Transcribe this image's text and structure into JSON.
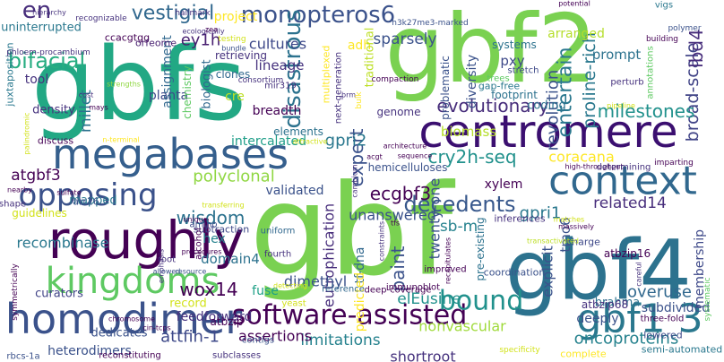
{
  "words": [
    {
      "text": "gbfs",
      "color": "#22a884"
    },
    {
      "text": "gbf2",
      "color": "#7ad151"
    },
    {
      "text": "gbf",
      "color": "#7ad151"
    },
    {
      "text": "gbf4",
      "color": "#2c728e"
    },
    {
      "text": "centromere",
      "color": "#3b0f70"
    },
    {
      "text": "context",
      "color": "#31688e"
    },
    {
      "text": "megabases",
      "color": "#355f8d"
    },
    {
      "text": "roughly",
      "color": "#440154"
    },
    {
      "text": "homodimer",
      "color": "#3b528b"
    },
    {
      "text": "kingdoms",
      "color": "#5ec962"
    },
    {
      "text": "gbf1 3",
      "color": "#2a788e"
    },
    {
      "text": "software-assisted",
      "color": "#440154"
    },
    {
      "text": "opposing",
      "color": "#3b528b"
    },
    {
      "text": "bound",
      "color": "#21918c"
    },
    {
      "text": "monopteros6",
      "color": "#3b528b"
    },
    {
      "text": "decedents",
      "color": "#38588c"
    },
    {
      "text": "disastrous",
      "color": "#2c728e"
    },
    {
      "text": "vestigial",
      "color": "#31688e"
    },
    {
      "text": "wisdom",
      "color": "#2c728e"
    },
    {
      "text": "ecgbf3",
      "color": "#440154"
    },
    {
      "text": "cry2h-seq",
      "color": "#21918c"
    },
    {
      "text": "polyclonal",
      "color": "#90d743"
    },
    {
      "text": "expert",
      "color": "#3b528b"
    },
    {
      "text": "paint",
      "color": "#3b528b"
    },
    {
      "text": "eutrophication",
      "color": "#472d7b"
    },
    {
      "text": "entertain",
      "color": "#2a788e"
    },
    {
      "text": "proline-rich",
      "color": "#2a788e"
    },
    {
      "text": "broad-scale",
      "color": "#414487"
    },
    {
      "text": "lbd4",
      "color": "#472d7b"
    },
    {
      "text": "milestones",
      "color": "#21918c"
    },
    {
      "text": "coracana",
      "color": "#fde725"
    },
    {
      "text": "bifacial",
      "color": "#27ad81"
    },
    {
      "text": "en",
      "color": "#472d7b"
    },
    {
      "text": "ey1h",
      "color": "#481f70"
    },
    {
      "text": "wox14",
      "color": "#440154"
    },
    {
      "text": "attfin-1",
      "color": "#3e4989"
    },
    {
      "text": "sparsely",
      "color": "#3b528b"
    },
    {
      "text": "revolution",
      "color": "#3b528b"
    },
    {
      "text": "evolutionary",
      "color": "#472d7b"
    },
    {
      "text": "gpri2",
      "color": "#2a788e"
    },
    {
      "text": "gpri1",
      "color": "#2a788e"
    },
    {
      "text": "related14",
      "color": "#472d7b"
    },
    {
      "text": "overuse",
      "color": "#31688e"
    },
    {
      "text": "oncoproteins",
      "color": "#26828e"
    },
    {
      "text": "elEusine",
      "color": "#21918c"
    },
    {
      "text": "limitations",
      "color": "#26828e"
    },
    {
      "text": "assertions",
      "color": "#440154"
    },
    {
      "text": "nonvascular",
      "color": "#9fda3a"
    },
    {
      "text": "shortroot",
      "color": "#46327e"
    },
    {
      "text": "twenty-one",
      "color": "#3b528b"
    },
    {
      "text": "sb-m",
      "color": "#26828e"
    },
    {
      "text": "unanswered",
      "color": "#3b528b"
    },
    {
      "text": "atgbf3",
      "color": "#440154"
    },
    {
      "text": "pxy",
      "color": "#3e4989"
    },
    {
      "text": "adh",
      "color": "#fde725"
    },
    {
      "text": "cultures",
      "color": "#3e4989"
    },
    {
      "text": "lineage",
      "color": "#46327e"
    },
    {
      "text": "project",
      "color": "#fde725"
    },
    {
      "text": "millet",
      "color": "#2c728e"
    },
    {
      "text": "arranged",
      "color": "#b5de2b"
    },
    {
      "text": "prompt",
      "color": "#2c728e"
    },
    {
      "text": "recombinase",
      "color": "#2a788e"
    },
    {
      "text": "domain4",
      "color": "#2c728e"
    },
    {
      "text": "hex",
      "color": "#26828e"
    },
    {
      "text": "dimethyl",
      "color": "#3b528b"
    },
    {
      "text": "tf-dna",
      "color": "#31688e"
    },
    {
      "text": "fuse",
      "color": "#1fa187"
    },
    {
      "text": "heterodimers",
      "color": "#3b528b"
    },
    {
      "text": "feedforward",
      "color": "#46327e"
    },
    {
      "text": "explicit",
      "color": "#3b528b"
    },
    {
      "text": "deeply",
      "color": "#3b528b"
    },
    {
      "text": "subdivided",
      "color": "#3b528b"
    },
    {
      "text": "brahma",
      "color": "#2c728e"
    },
    {
      "text": "tmo6",
      "color": "#3b528b"
    },
    {
      "text": "membership",
      "color": "#3e4989"
    },
    {
      "text": "xylem",
      "color": "#440154"
    },
    {
      "text": "biomass",
      "color": "#b5de2b"
    },
    {
      "text": "hemicelluloses",
      "color": "#3b528b"
    },
    {
      "text": "validated",
      "color": "#3b528b"
    },
    {
      "text": "intercalated",
      "color": "#1f9e89"
    },
    {
      "text": "elements",
      "color": "#2c728e"
    },
    {
      "text": "breadth",
      "color": "#440154"
    },
    {
      "text": "coding",
      "color": "#2c728e"
    },
    {
      "text": "mapped",
      "color": "#2a788e"
    },
    {
      "text": "curators",
      "color": "#414487"
    },
    {
      "text": "record",
      "color": "#d2e21b"
    },
    {
      "text": "dedicates",
      "color": "#3b528b"
    },
    {
      "text": "uninterrupted",
      "color": "#2a788e"
    },
    {
      "text": "retrieving",
      "color": "#46327e"
    },
    {
      "text": "clones",
      "color": "#31688e"
    },
    {
      "text": "planta",
      "color": "#3e4989"
    },
    {
      "text": "density",
      "color": "#46327e"
    },
    {
      "text": "tool",
      "color": "#46327e"
    },
    {
      "text": "guidelines",
      "color": "#d2e21b"
    },
    {
      "text": "predicted",
      "color": "#fde725"
    },
    {
      "text": "diversity",
      "color": "#3b528b"
    },
    {
      "text": "genome",
      "color": "#46327e"
    },
    {
      "text": "systems",
      "color": "#2c728e"
    },
    {
      "text": "footprint",
      "color": "#2c728e"
    },
    {
      "text": "assignment",
      "color": "#31688e"
    },
    {
      "text": "atbzip16",
      "color": "#440154"
    },
    {
      "text": "atbzip68",
      "color": "#46327e"
    },
    {
      "text": "atbzip",
      "color": "#440154"
    },
    {
      "text": "biologist",
      "color": "#31688e"
    },
    {
      "text": "cre",
      "color": "#bddf26"
    },
    {
      "text": "chemistry",
      "color": "#5ec962"
    },
    {
      "text": "problematic",
      "color": "#3b528b"
    },
    {
      "text": "traditional",
      "color": "#bddf26"
    },
    {
      "text": "ccacgtgg",
      "color": "#440154"
    },
    {
      "text": "orfeome",
      "color": "#481f70"
    },
    {
      "text": "vigs",
      "color": "#2a788e"
    },
    {
      "text": "juxtaposition",
      "color": "#2a788e"
    },
    {
      "text": "multiplexed",
      "color": "#fde725"
    },
    {
      "text": "next-generation",
      "color": "#46327e"
    },
    {
      "text": "discuss",
      "color": "#440154"
    },
    {
      "text": "arr16",
      "color": "#3b528b"
    },
    {
      "text": "shape",
      "color": "#46327e"
    },
    {
      "text": "amino",
      "color": "#3e4989"
    },
    {
      "text": "subtraction",
      "color": "#3e4989"
    },
    {
      "text": "alcohol",
      "color": "#440154"
    },
    {
      "text": "uniform",
      "color": "#31688e"
    },
    {
      "text": "fourth",
      "color": "#46327e"
    },
    {
      "text": "root",
      "color": "#46327e"
    },
    {
      "text": "pre-existing",
      "color": "#2c728e"
    },
    {
      "text": "coordination",
      "color": "#3b528b"
    },
    {
      "text": "inferences",
      "color": "#46327e"
    },
    {
      "text": "charge",
      "color": "#3e4989"
    },
    {
      "text": "lowered",
      "color": "#3e4989"
    },
    {
      "text": "three-fold",
      "color": "#440154"
    },
    {
      "text": "semi-automated",
      "color": "#2a788e"
    },
    {
      "text": "complete",
      "color": "#fde725"
    },
    {
      "text": "immunoblot",
      "color": "#440154"
    },
    {
      "text": "deep-coverage",
      "color": "#440154"
    },
    {
      "text": "yeast",
      "color": "#d2e21b"
    },
    {
      "text": "improved",
      "color": "#440154"
    },
    {
      "text": "reference",
      "color": "#31688e"
    },
    {
      "text": "contigs",
      "color": "#3b528b"
    },
    {
      "text": "rbcs-1a",
      "color": "#3b528b"
    },
    {
      "text": "reconstituting",
      "color": "#440154"
    },
    {
      "text": "subclasses",
      "color": "#46327e"
    },
    {
      "text": "consortium",
      "color": "#46327e"
    },
    {
      "text": "mir319",
      "color": "#46327e"
    },
    {
      "text": "compaction",
      "color": "#440154"
    },
    {
      "text": "h3k27me3-marked",
      "color": "#3b528b"
    },
    {
      "text": "gap-free",
      "color": "#2a788e"
    },
    {
      "text": "trees",
      "color": "#5ec962"
    },
    {
      "text": "stretch",
      "color": "#3e4989"
    },
    {
      "text": "perturb",
      "color": "#46327e"
    },
    {
      "text": "building",
      "color": "#440154"
    },
    {
      "text": "polymer",
      "color": "#3b528b"
    },
    {
      "text": "annotations",
      "color": "#5ec962"
    },
    {
      "text": "high-throughput",
      "color": "#440154"
    },
    {
      "text": "determining",
      "color": "#46327e"
    },
    {
      "text": "imparting",
      "color": "#440154"
    },
    {
      "text": "phloem-procambium",
      "color": "#46327e"
    },
    {
      "text": "hierarchy",
      "color": "#46327e"
    },
    {
      "text": "recognizable",
      "color": "#46327e"
    },
    {
      "text": "hallmark",
      "color": "#46327e"
    },
    {
      "text": "ecologically",
      "color": "#46327e"
    },
    {
      "text": "testing",
      "color": "#d2e21b"
    },
    {
      "text": "bundle",
      "color": "#3b528b"
    },
    {
      "text": "strengths",
      "color": "#90d743"
    },
    {
      "text": "cost",
      "color": "#46327e"
    },
    {
      "text": "mays",
      "color": "#440154"
    },
    {
      "text": "n-terminal",
      "color": "#fde725"
    },
    {
      "text": "attractive",
      "color": "#d2e21b"
    },
    {
      "text": "brm",
      "color": "#46327e"
    },
    {
      "text": "bulk",
      "color": "#fde725"
    },
    {
      "text": "acgt",
      "color": "#440154"
    },
    {
      "text": "architecture",
      "color": "#440154"
    },
    {
      "text": "sequence",
      "color": "#440154"
    },
    {
      "text": "tfs",
      "color": "#440154"
    },
    {
      "text": "cambium",
      "color": "#46327e"
    },
    {
      "text": "constraints",
      "color": "#46327e"
    },
    {
      "text": "recapitulates",
      "color": "#440154"
    },
    {
      "text": "transactivated",
      "color": "#bddf26"
    },
    {
      "text": "matches",
      "color": "#d2e21b"
    },
    {
      "text": "massively",
      "color": "#440154"
    },
    {
      "text": "pipeline",
      "color": "#d2e21b"
    },
    {
      "text": "careful",
      "color": "#46327e"
    },
    {
      "text": "systematic",
      "color": "#5ec962"
    },
    {
      "text": "specificity",
      "color": "#d2e21b"
    },
    {
      "text": "emphasis",
      "color": "#46327e"
    },
    {
      "text": "allowed",
      "color": "#3b528b"
    },
    {
      "text": "resource",
      "color": "#3b528b"
    },
    {
      "text": "procedures",
      "color": "#440154"
    },
    {
      "text": "detecting",
      "color": "#d2e21b"
    },
    {
      "text": "chromosome",
      "color": "#440154"
    },
    {
      "text": "cin-tcps",
      "color": "#440154"
    },
    {
      "text": "sulfate",
      "color": "#440154"
    },
    {
      "text": "transferring",
      "color": "#d2e21b"
    },
    {
      "text": "unique",
      "color": "#440154"
    },
    {
      "text": "nearby",
      "color": "#440154"
    },
    {
      "text": "palindromic",
      "color": "#d2e21b"
    },
    {
      "text": "symmetrically",
      "color": "#440154"
    },
    {
      "text": "potential",
      "color": "#440154"
    },
    {
      "text": "zea",
      "color": "#440154"
    }
  ]
}
